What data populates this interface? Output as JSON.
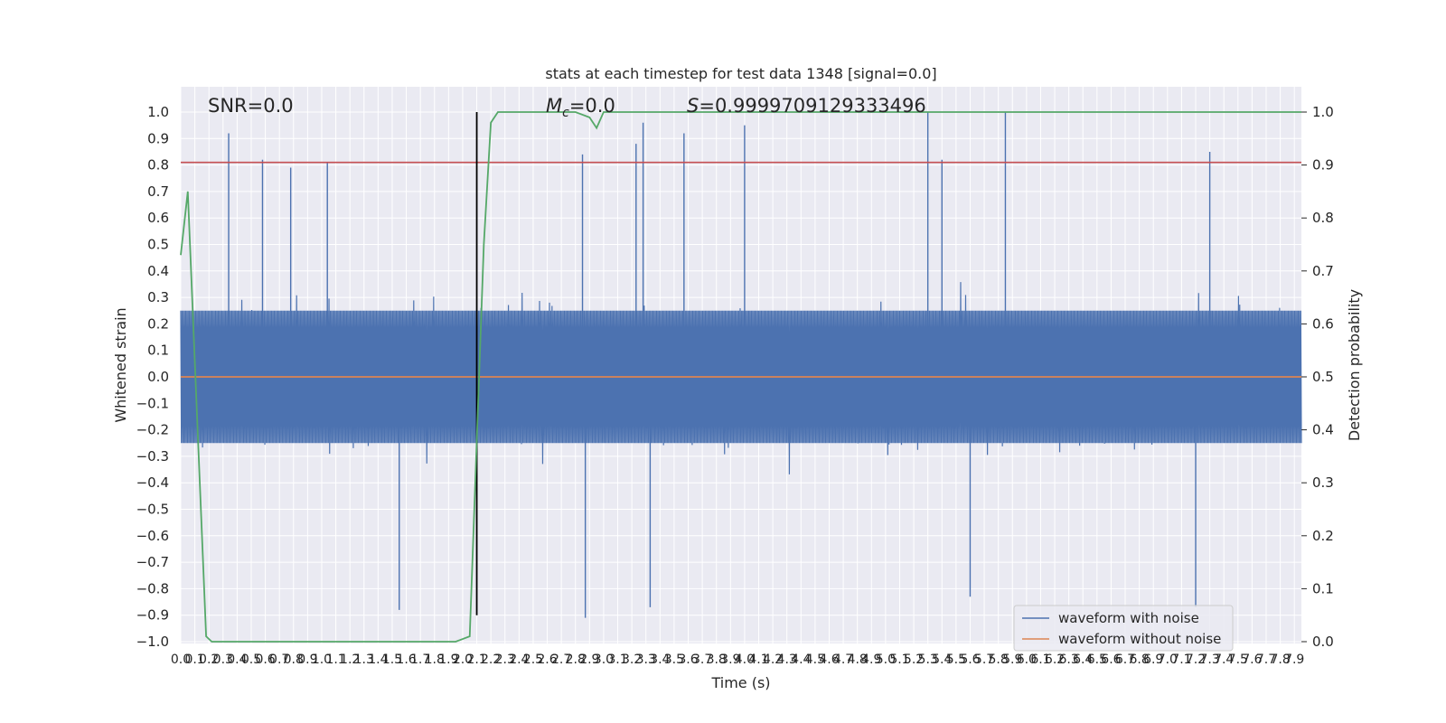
{
  "chart_data": {
    "type": "line",
    "title": "stats at each timestep for test data 1348 [signal=0.0]",
    "xlabel": "Time (s)",
    "ylabel": "Whitened strain",
    "ylabel_right": "Detection probability",
    "xlim": [
      0.0,
      7.95
    ],
    "ylim": [
      -1.0,
      1.0
    ],
    "ylim_right": [
      0.0,
      1.0
    ],
    "x_ticks": [
      "0.0",
      "0.1",
      "0.2",
      "0.3",
      "0.4",
      "0.5",
      "0.6",
      "0.7",
      "0.8",
      "0.9",
      "1.0",
      "1.1",
      "1.2",
      "1.3",
      "1.4",
      "1.5",
      "1.6",
      "1.7",
      "1.8",
      "1.9",
      "2.0",
      "2.1",
      "2.2",
      "2.3",
      "2.4",
      "2.5",
      "2.6",
      "2.7",
      "2.8",
      "2.9",
      "3.0",
      "3.1",
      "3.2",
      "3.3",
      "3.4",
      "3.5",
      "3.6",
      "3.7",
      "3.8",
      "3.9",
      "4.0",
      "4.1",
      "4.2",
      "4.3",
      "4.4",
      "4.5",
      "4.6",
      "4.7",
      "4.8",
      "4.9",
      "5.0",
      "5.1",
      "5.2",
      "5.3",
      "5.4",
      "5.5",
      "5.6",
      "5.7",
      "5.8",
      "5.9",
      "6.0",
      "6.1",
      "6.2",
      "6.3",
      "6.4",
      "6.5",
      "6.6",
      "6.7",
      "6.8",
      "6.9",
      "7.0",
      "7.1",
      "7.2",
      "7.3",
      "7.4",
      "7.5",
      "7.6",
      "7.7",
      "7.8",
      "7.9"
    ],
    "y_ticks": [
      "−1.0",
      "−0.9",
      "−0.8",
      "−0.7",
      "−0.6",
      "−0.5",
      "−0.4",
      "−0.3",
      "−0.2",
      "−0.1",
      "0.0",
      "0.1",
      "0.2",
      "0.3",
      "0.4",
      "0.5",
      "0.6",
      "0.7",
      "0.8",
      "0.9",
      "1.0"
    ],
    "y_ticks_right": [
      "0.0",
      "0.1",
      "0.2",
      "0.3",
      "0.4",
      "0.5",
      "0.6",
      "0.7",
      "0.8",
      "0.9",
      "1.0"
    ],
    "annotations": {
      "snr": "SNR=0.0",
      "mc_symbol": "M",
      "mc_sub": "c",
      "mc_value": "=0.0",
      "s_symbol": "S",
      "s_value": "=0.9999709129333496"
    },
    "series": [
      {
        "name": "waveform with noise",
        "color": "#4c72b0",
        "description_kind": "noise",
        "envelope_typical": 0.45,
        "peaks": [
          {
            "x": 0.34,
            "y": 0.92
          },
          {
            "x": 0.58,
            "y": 0.82
          },
          {
            "x": 0.78,
            "y": 0.79
          },
          {
            "x": 1.04,
            "y": 0.81
          },
          {
            "x": 2.85,
            "y": 0.84
          },
          {
            "x": 3.23,
            "y": 0.88
          },
          {
            "x": 3.28,
            "y": 0.96
          },
          {
            "x": 3.57,
            "y": 0.92
          },
          {
            "x": 4.0,
            "y": 0.95
          },
          {
            "x": 5.3,
            "y": 1.0
          },
          {
            "x": 5.4,
            "y": 0.82
          },
          {
            "x": 5.85,
            "y": 1.0
          },
          {
            "x": 7.3,
            "y": 0.85
          },
          {
            "x": 2.87,
            "y": -0.91
          },
          {
            "x": 1.55,
            "y": -0.88
          },
          {
            "x": 3.33,
            "y": -0.87
          },
          {
            "x": 7.2,
            "y": -0.87
          },
          {
            "x": 5.6,
            "y": -0.83
          }
        ]
      },
      {
        "name": "waveform without noise",
        "color": "#dd8452",
        "x": [
          0.0,
          7.95
        ],
        "y": [
          0.0,
          0.0
        ]
      },
      {
        "name": "",
        "color": "#55a868",
        "axis": "right",
        "x": [
          0.0,
          0.05,
          0.18,
          0.22,
          1.95,
          2.05,
          2.15,
          2.2,
          2.25,
          2.8,
          2.9,
          2.95,
          3.0,
          7.95
        ],
        "y": [
          0.73,
          0.85,
          0.01,
          0.0,
          0.0,
          0.01,
          0.75,
          0.98,
          1.0,
          1.0,
          0.99,
          0.97,
          1.0,
          1.0
        ]
      }
    ],
    "hlines": [
      {
        "y": 0.81,
        "color": "#c44e52"
      }
    ],
    "vlines": [
      {
        "x": 2.1,
        "color": "#000000"
      }
    ],
    "legend": {
      "placement": "lower-right"
    },
    "grid": true
  }
}
